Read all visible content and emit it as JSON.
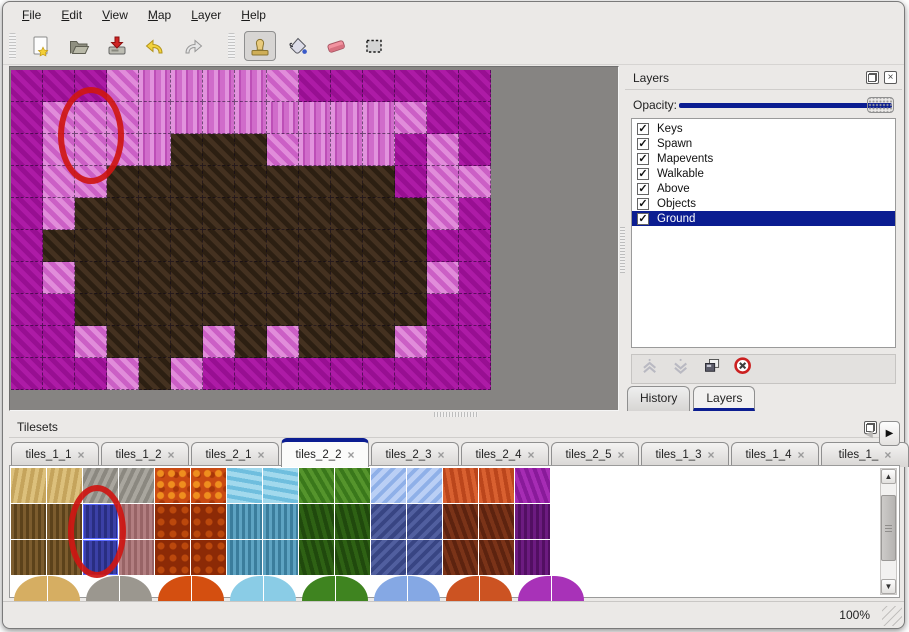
{
  "menu": {
    "items": [
      {
        "label": "File"
      },
      {
        "label": "Edit"
      },
      {
        "label": "View"
      },
      {
        "label": "Map"
      },
      {
        "label": "Layer"
      },
      {
        "label": "Help"
      }
    ]
  },
  "toolbar": {
    "buttons": [
      {
        "name": "new-file",
        "selected": false
      },
      {
        "name": "open-file",
        "selected": false
      },
      {
        "name": "save-file",
        "selected": false
      },
      {
        "name": "undo",
        "selected": false
      },
      {
        "name": "redo",
        "selected": false
      },
      {
        "name": "stamp-tool",
        "selected": true
      },
      {
        "name": "fill-tool",
        "selected": false
      },
      {
        "name": "eraser-tool",
        "selected": false
      },
      {
        "name": "select-tool",
        "selected": false
      }
    ]
  },
  "map_view": {
    "tile_size": 32,
    "legend": {
      "M": "dark-magenta-ground",
      "P": "light-pink-ground",
      "L": "light-pink-pillars",
      "B": "dark-brown-rock"
    },
    "rows": [
      "MMMPLLLLPMMMMMM",
      "MPPPLLLLLLLLPMM",
      "MPPPLBBBPLLLMPM",
      "MPPBBBBBBBBBMPP",
      "MPBBBBBBBBBBBPM",
      "MBBBBBBBBBBBBMM",
      "MPBBBBBBBBBBBPM",
      "MMBBBBBBBBBBBMM",
      "MMPBBBPBPBBBPMM",
      "MMMPBPMMMMMMMMM"
    ],
    "annotation": {
      "shape": "red-ellipse",
      "center_tile": "col 2-3, row 1-2"
    }
  },
  "layers_panel": {
    "title": "Layers",
    "opacity_label": "Opacity:",
    "opacity_value": 100,
    "layers": [
      {
        "name": "Keys",
        "visible": true,
        "selected": false
      },
      {
        "name": "Spawn",
        "visible": true,
        "selected": false
      },
      {
        "name": "Mapevents",
        "visible": true,
        "selected": false
      },
      {
        "name": "Walkable",
        "visible": true,
        "selected": false
      },
      {
        "name": "Above",
        "visible": true,
        "selected": false
      },
      {
        "name": "Objects",
        "visible": true,
        "selected": false
      },
      {
        "name": "Ground",
        "visible": true,
        "selected": true
      }
    ],
    "buttons": [
      "move-layer-up",
      "move-layer-down",
      "duplicate-layer",
      "delete-layer"
    ],
    "tabs": [
      {
        "label": "History",
        "active": false
      },
      {
        "label": "Layers",
        "active": true
      }
    ]
  },
  "tilesets_panel": {
    "title": "Tilesets",
    "tabs": [
      {
        "label": "tiles_1_1",
        "active": false
      },
      {
        "label": "tiles_1_2",
        "active": false
      },
      {
        "label": "tiles_2_1",
        "active": false
      },
      {
        "label": "tiles_2_2",
        "active": true
      },
      {
        "label": "tiles_2_3",
        "active": false
      },
      {
        "label": "tiles_2_4",
        "active": false
      },
      {
        "label": "tiles_2_5",
        "active": false
      },
      {
        "label": "tiles_1_3",
        "active": false
      },
      {
        "label": "tiles_1_4",
        "active": false
      },
      {
        "label": "tiles_1_",
        "active": false,
        "clipped": true
      }
    ],
    "grid": {
      "row1": [
        "tan",
        "tan",
        "gray",
        "gray",
        "lava",
        "lava",
        "lblue",
        "lblue",
        "green",
        "green",
        "ice",
        "ice",
        "orange",
        "orange",
        "purple"
      ],
      "row2": [
        "bark",
        "bark",
        "navysel",
        "mauve",
        "dred",
        "dred",
        "icicle",
        "icicle",
        "dgreen",
        "dgreen",
        "dcrystal",
        "dcrystal",
        "maroon",
        "maroon",
        "dpurple"
      ],
      "row3": [
        "bark",
        "bark",
        "navysel",
        "mauve",
        "dred",
        "dred",
        "icicle",
        "icicle",
        "dgreen",
        "dgreen",
        "dcrystal",
        "dcrystal",
        "maroon",
        "maroon",
        "dpurple"
      ],
      "blob_colors": [
        "#d6ae62",
        "#9b978f",
        "#d44f10",
        "#8acce6",
        "#3f8420",
        "#85a8e4",
        "#cc5322",
        "#a832b8"
      ],
      "selected_tile": {
        "column": 2,
        "rows": [
          1,
          2
        ],
        "texture": "navysel"
      },
      "annotation": {
        "shape": "red-ellipse",
        "target": "selected blue tile"
      }
    }
  },
  "status_bar": {
    "zoom": "100%"
  },
  "icons": {
    "close": "×",
    "left_arrow": "◀",
    "right_arrow": "▶",
    "up_arrow": "▲",
    "down_arrow": "▼",
    "check": "✓"
  },
  "colors": {
    "accent_navy": "#0b1d91",
    "annotation_red": "#ce1612",
    "map_magenta": "#a517a0",
    "map_pink": "#d873d2",
    "map_brown": "#382a1c",
    "canvas_gray": "#868482"
  }
}
